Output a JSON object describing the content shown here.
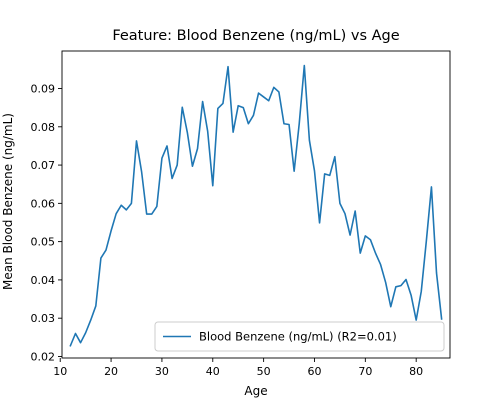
{
  "chart_data": {
    "type": "line",
    "title": "Feature: Blood Benzene (ng/mL) vs Age",
    "xlabel": "Age",
    "ylabel": "Mean Blood Benzene (ng/mL)",
    "xlim": [
      10.35,
      86.65
    ],
    "ylim": [
      0.0196,
      0.0998
    ],
    "x_ticks": [
      10,
      20,
      30,
      40,
      50,
      60,
      70,
      80
    ],
    "y_ticks": [
      0.02,
      0.03,
      0.04,
      0.05,
      0.06,
      0.07,
      0.08,
      0.09
    ],
    "x_tick_labels": [
      "10",
      "20",
      "30",
      "40",
      "50",
      "60",
      "70",
      "80"
    ],
    "y_tick_labels": [
      "0.02",
      "0.03",
      "0.04",
      "0.05",
      "0.06",
      "0.07",
      "0.08",
      "0.09"
    ],
    "grid": false,
    "legend_position": "lower-right",
    "series": [
      {
        "name": "Blood Benzene (ng/mL) (R2=0.01)",
        "color": "#1f77b4",
        "x": [
          12,
          13,
          14,
          15,
          16,
          17,
          18,
          19,
          20,
          21,
          22,
          23,
          24,
          25,
          26,
          27,
          28,
          29,
          30,
          31,
          32,
          33,
          34,
          35,
          36,
          37,
          38,
          39,
          40,
          41,
          42,
          43,
          44,
          45,
          46,
          47,
          48,
          49,
          50,
          51,
          52,
          53,
          54,
          55,
          56,
          57,
          58,
          59,
          60,
          61,
          62,
          63,
          64,
          65,
          66,
          67,
          68,
          69,
          70,
          71,
          72,
          73,
          74,
          75,
          76,
          77,
          78,
          79,
          80,
          81,
          82,
          83,
          84,
          85
        ],
        "y": [
          0.0228,
          0.026,
          0.0236,
          0.0262,
          0.0295,
          0.0332,
          0.0457,
          0.0478,
          0.0528,
          0.0573,
          0.0595,
          0.0583,
          0.06,
          0.0763,
          0.0683,
          0.0572,
          0.0572,
          0.0592,
          0.0718,
          0.075,
          0.0665,
          0.07,
          0.0851,
          0.0785,
          0.0697,
          0.0743,
          0.0866,
          0.0788,
          0.0646,
          0.0848,
          0.0861,
          0.0957,
          0.0786,
          0.0855,
          0.085,
          0.0808,
          0.083,
          0.0888,
          0.0878,
          0.0868,
          0.0903,
          0.0891,
          0.0808,
          0.0806,
          0.0684,
          0.0808,
          0.096,
          0.0765,
          0.0685,
          0.0549,
          0.0677,
          0.0673,
          0.0722,
          0.06,
          0.0573,
          0.0517,
          0.058,
          0.047,
          0.0515,
          0.0505,
          0.047,
          0.044,
          0.0393,
          0.033,
          0.0382,
          0.0385,
          0.0401,
          0.036,
          0.0295,
          0.037,
          0.0502,
          0.0643,
          0.0418,
          0.0298
        ]
      }
    ]
  }
}
